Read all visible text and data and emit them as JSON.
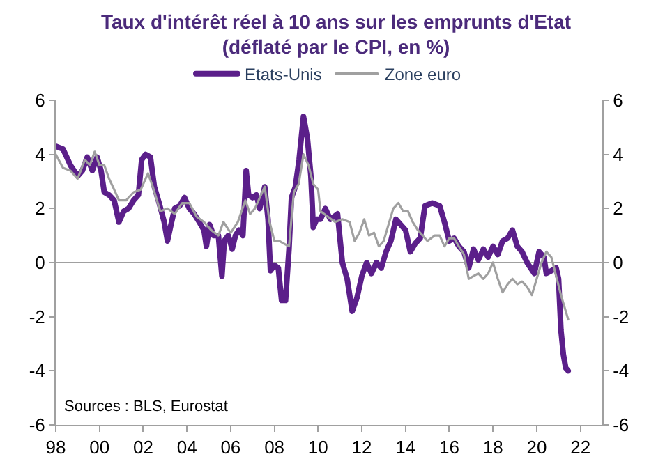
{
  "chart_data": {
    "type": "line",
    "title": "Taux d'intérêt réel à 10 ans sur les emprunts d'Etat\n(déflaté par le CPI, en %)",
    "annotations": [
      "Sources : BLS, Eurostat"
    ],
    "xlim": [
      1998,
      2023
    ],
    "xticks": [
      {
        "value": 1998,
        "label": "98"
      },
      {
        "value": 2000,
        "label": "00"
      },
      {
        "value": 2002,
        "label": "02"
      },
      {
        "value": 2004,
        "label": "04"
      },
      {
        "value": 2006,
        "label": "06"
      },
      {
        "value": 2008,
        "label": "08"
      },
      {
        "value": 2010,
        "label": "10"
      },
      {
        "value": 2012,
        "label": "12"
      },
      {
        "value": 2014,
        "label": "14"
      },
      {
        "value": 2016,
        "label": "16"
      },
      {
        "value": 2018,
        "label": "18"
      },
      {
        "value": 2020,
        "label": "20"
      },
      {
        "value": 2022,
        "label": "22"
      }
    ],
    "ylim": [
      -6,
      6
    ],
    "yticks": [
      -6,
      -4,
      -2,
      0,
      2,
      4,
      6
    ],
    "y2lim": [
      -6,
      6
    ],
    "y2ticks": [
      -6,
      -4,
      -2,
      0,
      2,
      4,
      6
    ],
    "ref_lines": [
      {
        "axis": "y",
        "value": 0,
        "color": "#a0a0a0"
      }
    ],
    "legend": "top",
    "grid": false,
    "series": [
      {
        "name": "Etats-Unis",
        "color": "#5b1f8a",
        "x": [
          1998.0,
          1998.33,
          1998.67,
          1999.0,
          1999.22,
          1999.44,
          1999.67,
          1999.89,
          2000.07,
          2000.22,
          2000.44,
          2000.67,
          2000.89,
          2001.11,
          2001.33,
          2001.56,
          2001.78,
          2001.93,
          2002.11,
          2002.33,
          2002.51,
          2002.73,
          2002.96,
          2003.11,
          2003.27,
          2003.44,
          2003.67,
          2003.89,
          2004.11,
          2004.33,
          2004.56,
          2004.78,
          2004.89,
          2005.04,
          2005.22,
          2005.44,
          2005.6,
          2005.71,
          2005.89,
          2006.07,
          2006.22,
          2006.38,
          2006.56,
          2006.71,
          2006.82,
          2007.0,
          2007.18,
          2007.33,
          2007.56,
          2007.71,
          2007.82,
          2008.0,
          2008.18,
          2008.33,
          2008.51,
          2008.67,
          2008.78,
          2008.96,
          2009.13,
          2009.33,
          2009.51,
          2009.67,
          2009.78,
          2009.93,
          2010.11,
          2010.33,
          2010.56,
          2010.89,
          2011.11,
          2011.33,
          2011.56,
          2011.78,
          2012.0,
          2012.22,
          2012.44,
          2012.67,
          2012.89,
          2013.11,
          2013.33,
          2013.56,
          2013.78,
          2014.0,
          2014.22,
          2014.44,
          2014.67,
          2014.89,
          2015.22,
          2015.56,
          2015.78,
          2016.0,
          2016.22,
          2016.44,
          2016.67,
          2016.89,
          2017.11,
          2017.33,
          2017.56,
          2017.78,
          2018.0,
          2018.22,
          2018.44,
          2018.67,
          2018.89,
          2019.11,
          2019.33,
          2019.56,
          2019.89,
          2020.11,
          2020.33,
          2020.44,
          2020.67,
          2020.89,
          2021.0,
          2021.11,
          2021.22,
          2021.33,
          2021.44
        ],
        "values": [
          4.3,
          4.2,
          3.6,
          3.2,
          3.4,
          3.9,
          3.4,
          3.9,
          3.4,
          2.6,
          2.5,
          2.3,
          1.5,
          1.9,
          2.0,
          2.3,
          2.5,
          3.8,
          4.0,
          3.9,
          2.8,
          2.2,
          1.5,
          0.8,
          1.4,
          2.0,
          2.1,
          2.4,
          2.0,
          1.8,
          1.5,
          1.2,
          0.6,
          1.4,
          1.0,
          1.0,
          -0.5,
          0.8,
          1.0,
          0.5,
          1.0,
          1.2,
          1.0,
          3.4,
          2.5,
          2.4,
          2.5,
          2.0,
          2.8,
          1.6,
          -0.3,
          -0.1,
          -0.2,
          -1.4,
          -1.4,
          0.5,
          2.4,
          2.8,
          3.8,
          5.4,
          4.6,
          3.2,
          1.3,
          1.6,
          1.6,
          2.0,
          1.6,
          1.8,
          0.0,
          -0.6,
          -1.8,
          -1.3,
          -0.5,
          0.0,
          -0.4,
          0.0,
          -0.2,
          0.4,
          0.8,
          1.6,
          1.4,
          1.2,
          0.4,
          0.7,
          0.9,
          2.1,
          2.2,
          2.1,
          1.5,
          0.8,
          0.9,
          0.6,
          0.4,
          -0.2,
          0.5,
          0.1,
          0.5,
          0.2,
          0.6,
          0.3,
          0.8,
          0.9,
          1.2,
          0.6,
          0.4,
          0.0,
          -0.4,
          0.4,
          0.2,
          -0.4,
          -0.3,
          -0.2,
          -0.6,
          -2.5,
          -3.4,
          -3.9,
          -4.0
        ]
      },
      {
        "name": "Zone euro",
        "color": "#a0a0a0",
        "x": [
          1998.0,
          1998.33,
          1998.67,
          1999.0,
          1999.33,
          1999.56,
          1999.78,
          2000.0,
          2000.22,
          2000.44,
          2000.67,
          2000.89,
          2001.22,
          2001.56,
          2001.89,
          2002.22,
          2002.44,
          2002.78,
          2003.11,
          2003.44,
          2003.78,
          2004.11,
          2004.44,
          2004.78,
          2005.11,
          2005.44,
          2005.67,
          2006.0,
          2006.33,
          2006.67,
          2006.89,
          2007.11,
          2007.33,
          2007.56,
          2007.78,
          2008.0,
          2008.22,
          2008.44,
          2008.67,
          2008.89,
          2009.11,
          2009.33,
          2009.56,
          2009.78,
          2010.0,
          2010.11,
          2010.44,
          2010.78,
          2011.11,
          2011.44,
          2011.67,
          2011.89,
          2012.11,
          2012.33,
          2012.56,
          2012.78,
          2013.0,
          2013.22,
          2013.44,
          2013.67,
          2013.89,
          2014.11,
          2014.33,
          2014.56,
          2014.78,
          2015.0,
          2015.33,
          2015.56,
          2015.78,
          2016.0,
          2016.22,
          2016.44,
          2016.67,
          2016.89,
          2017.11,
          2017.33,
          2017.56,
          2017.78,
          2018.0,
          2018.22,
          2018.44,
          2018.67,
          2018.89,
          2019.11,
          2019.33,
          2019.56,
          2019.78,
          2020.0,
          2020.22,
          2020.44,
          2020.67,
          2020.89,
          2021.11,
          2021.33,
          2021.44
        ],
        "values": [
          4.0,
          3.5,
          3.4,
          3.1,
          3.8,
          3.6,
          4.1,
          3.6,
          3.6,
          3.1,
          2.7,
          2.3,
          2.3,
          2.6,
          2.7,
          3.3,
          2.8,
          1.9,
          2.0,
          1.8,
          2.2,
          2.2,
          1.7,
          1.5,
          1.2,
          1.0,
          1.5,
          1.1,
          1.5,
          2.3,
          1.8,
          2.0,
          2.4,
          2.8,
          1.5,
          0.8,
          0.8,
          0.7,
          0.6,
          2.6,
          2.9,
          4.0,
          3.6,
          2.9,
          2.7,
          1.9,
          1.7,
          1.5,
          1.6,
          1.5,
          0.8,
          1.1,
          1.6,
          1.0,
          1.1,
          0.6,
          0.8,
          1.4,
          2.0,
          2.2,
          1.9,
          1.9,
          1.5,
          1.2,
          1.0,
          0.8,
          1.0,
          1.0,
          0.6,
          0.9,
          0.9,
          0.6,
          0.3,
          -0.6,
          -0.5,
          -0.4,
          -0.6,
          -0.4,
          0.0,
          -0.6,
          -1.1,
          -0.8,
          -0.6,
          -0.8,
          -0.7,
          -0.9,
          -1.2,
          -0.6,
          0.0,
          0.4,
          0.2,
          -0.5,
          -1.2,
          -1.8,
          -2.1
        ]
      }
    ]
  }
}
